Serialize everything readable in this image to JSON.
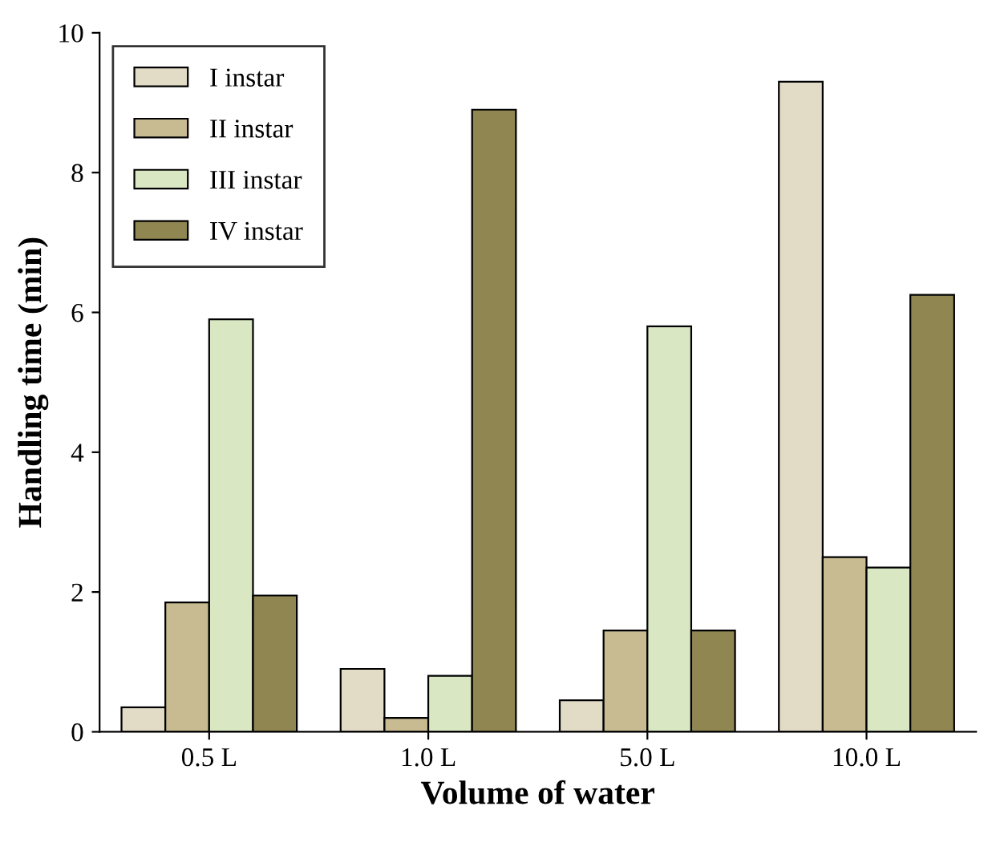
{
  "chart_data": {
    "type": "bar",
    "xlabel": "Volume of water",
    "ylabel": "Handling time (min)",
    "categories": [
      "0.5 L",
      "1.0 L",
      "5.0 L",
      "10.0 L"
    ],
    "series": [
      {
        "name": "I instar",
        "color": "#e2dbc6",
        "values": [
          0.35,
          0.9,
          0.45,
          9.3
        ]
      },
      {
        "name": "II instar",
        "color": "#c8bb92",
        "values": [
          1.85,
          0.2,
          1.45,
          2.5
        ]
      },
      {
        "name": "III instar",
        "color": "#dae7c3",
        "values": [
          5.9,
          0.8,
          5.8,
          2.35
        ]
      },
      {
        "name": "IV instar",
        "color": "#8f8652",
        "values": [
          1.95,
          8.9,
          1.45,
          6.25
        ]
      }
    ],
    "ylim": [
      0,
      10
    ],
    "yticks": [
      0,
      2,
      4,
      6,
      8,
      10
    ],
    "grid": false,
    "legend": "top left"
  }
}
